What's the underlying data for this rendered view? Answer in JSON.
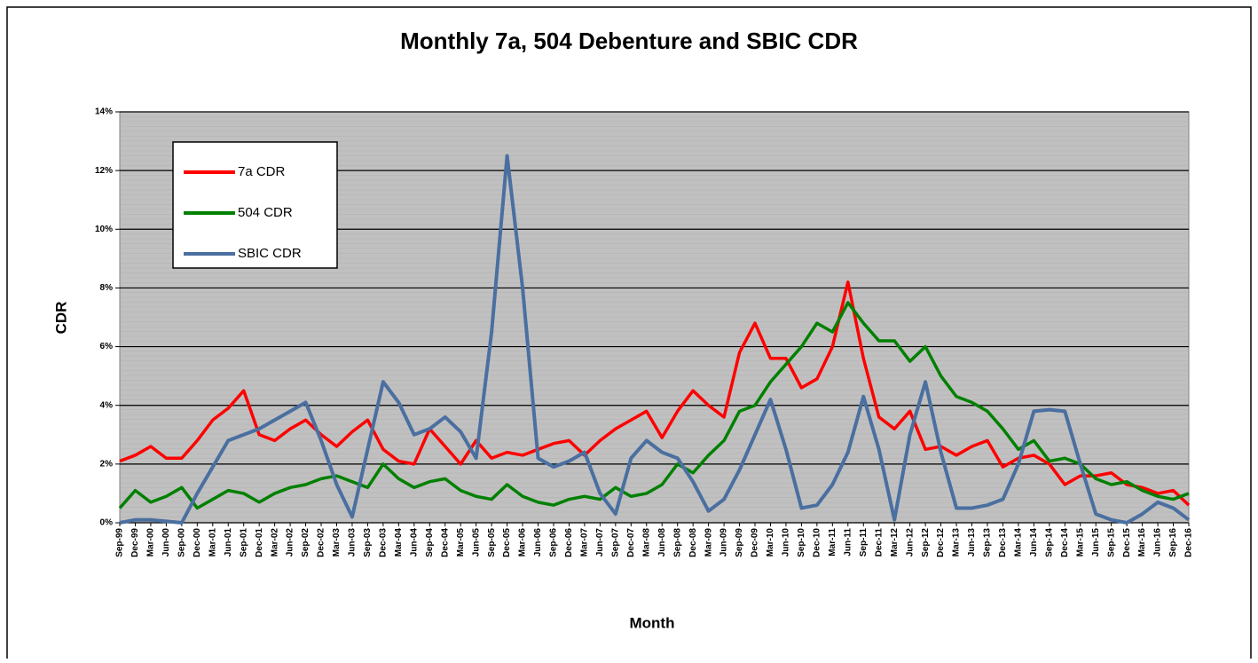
{
  "chart_data": {
    "type": "line",
    "title": "Monthly 7a, 504 Debenture and SBIC CDR",
    "x_label": "Month",
    "y_label": "CDR",
    "categories": [
      "Sep-99",
      "Dec-99",
      "Mar-00",
      "Jun-00",
      "Sep-00",
      "Dec-00",
      "Mar-01",
      "Jun-01",
      "Sep-01",
      "Dec-01",
      "Mar-02",
      "Jun-02",
      "Sep-02",
      "Dec-02",
      "Mar-03",
      "Jun-03",
      "Sep-03",
      "Dec-03",
      "Mar-04",
      "Jun-04",
      "Sep-04",
      "Dec-04",
      "Mar-05",
      "Jun-05",
      "Sep-05",
      "Dec-05",
      "Mar-06",
      "Jun-06",
      "Sep-06",
      "Dec-06",
      "Mar-07",
      "Jun-07",
      "Sep-07",
      "Dec-07",
      "Mar-08",
      "Jun-08",
      "Sep-08",
      "Dec-08",
      "Mar-09",
      "Jun-09",
      "Sep-09",
      "Dec-09",
      "Mar-10",
      "Jun-10",
      "Sep-10",
      "Dec-10",
      "Mar-11",
      "Jun-11",
      "Sep-11",
      "Dec-11",
      "Mar-12",
      "Jun-12",
      "Sep-12",
      "Dec-12",
      "Mar-13",
      "Jun-13",
      "Sep-13",
      "Dec-13",
      "Mar-14",
      "Jun-14",
      "Sep-14",
      "Dec-14",
      "Mar-15",
      "Jun-15",
      "Sep-15",
      "Dec-15",
      "Mar-16",
      "Jun-16",
      "Sep-16",
      "Dec-16"
    ],
    "series": [
      {
        "name": "7a CDR",
        "color": "#ff0000",
        "values": [
          2.1,
          2.3,
          2.6,
          2.2,
          2.2,
          2.8,
          3.5,
          3.9,
          4.5,
          3.0,
          2.8,
          3.2,
          3.5,
          3.0,
          2.6,
          3.1,
          3.5,
          2.5,
          2.1,
          2.0,
          3.2,
          2.6,
          2.0,
          2.8,
          2.2,
          2.4,
          2.3,
          2.5,
          2.7,
          2.8,
          2.3,
          2.8,
          3.2,
          3.5,
          3.8,
          2.9,
          3.8,
          4.5,
          4.0,
          3.6,
          5.8,
          6.8,
          5.6,
          5.6,
          4.6,
          4.9,
          6.0,
          8.2,
          5.6,
          3.6,
          3.2,
          3.8,
          2.5,
          2.6,
          2.3,
          2.6,
          2.8,
          1.9,
          2.2,
          2.3,
          2.0,
          1.3,
          1.6,
          1.6,
          1.7,
          1.3,
          1.2,
          1.0,
          1.1,
          0.6
        ]
      },
      {
        "name": "504 CDR",
        "color": "#008000",
        "values": [
          0.5,
          1.1,
          0.7,
          0.9,
          1.2,
          0.5,
          0.8,
          1.1,
          1.0,
          0.7,
          1.0,
          1.2,
          1.3,
          1.5,
          1.6,
          1.4,
          1.2,
          2.0,
          1.5,
          1.2,
          1.4,
          1.5,
          1.1,
          0.9,
          0.8,
          1.3,
          0.9,
          0.7,
          0.6,
          0.8,
          0.9,
          0.8,
          1.2,
          0.9,
          1.0,
          1.3,
          2.0,
          1.7,
          2.3,
          2.8,
          3.8,
          4.0,
          4.8,
          5.4,
          6.0,
          6.8,
          6.5,
          7.5,
          6.8,
          6.2,
          6.2,
          5.5,
          6.0,
          5.0,
          4.3,
          4.1,
          3.8,
          3.2,
          2.5,
          2.8,
          2.1,
          2.2,
          2.0,
          1.5,
          1.3,
          1.4,
          1.1,
          0.9,
          0.8,
          1.0
        ]
      },
      {
        "name": "SBIC CDR",
        "color": "#4a6fa0",
        "values": [
          0,
          0.1,
          0.1,
          0.05,
          0,
          1.0,
          1.9,
          2.8,
          3.0,
          3.2,
          3.5,
          3.8,
          4.1,
          2.8,
          1.3,
          0.2,
          2.5,
          4.8,
          4.1,
          3.0,
          3.2,
          3.6,
          3.1,
          2.2,
          6.5,
          12.5,
          8.0,
          2.2,
          1.9,
          2.1,
          2.4,
          1.0,
          0.3,
          2.2,
          2.8,
          2.4,
          2.2,
          1.4,
          0.4,
          0.8,
          1.8,
          3.0,
          4.2,
          2.5,
          0.5,
          0.6,
          1.3,
          2.4,
          4.3,
          2.5,
          0.1,
          3.0,
          4.8,
          2.4,
          0.5,
          0.5,
          0.6,
          0.8,
          2.0,
          3.8,
          3.85,
          3.8,
          2.0,
          0.3,
          0.1,
          0.0,
          0.3,
          0.7,
          0.5,
          0.1
        ]
      }
    ],
    "ylim": [
      0,
      14
    ],
    "yticks": [
      {
        "value": 0,
        "label": "0%"
      },
      {
        "value": 2,
        "label": "2%"
      },
      {
        "value": 4,
        "label": "4%"
      },
      {
        "value": 6,
        "label": "6%"
      },
      {
        "value": 8,
        "label": "8%"
      },
      {
        "value": 10,
        "label": "10%"
      },
      {
        "value": 12,
        "label": "12%"
      },
      {
        "value": 14,
        "label": "14%"
      }
    ],
    "grid": true,
    "legend": "upper-left"
  }
}
